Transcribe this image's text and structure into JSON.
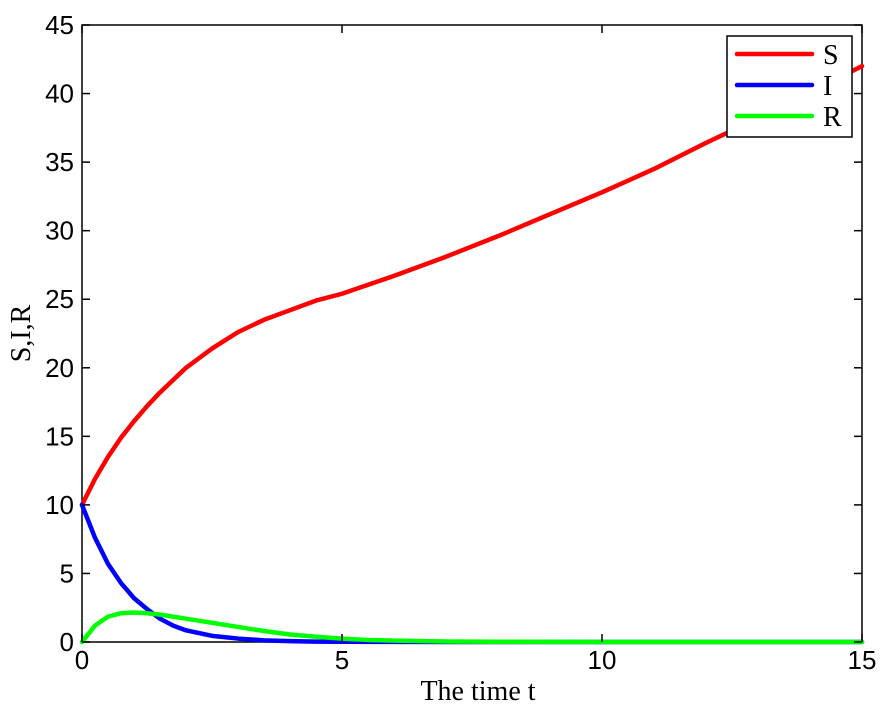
{
  "chart_data": {
    "type": "line",
    "title": "",
    "xlabel": "The time t",
    "ylabel": "S,I,R",
    "xlim": [
      0,
      15
    ],
    "ylim": [
      0,
      45
    ],
    "xticks": [
      0,
      5,
      10,
      15
    ],
    "xtick_labels": [
      "0",
      "5",
      "10",
      "15"
    ],
    "yticks": [
      0,
      5,
      10,
      15,
      20,
      25,
      30,
      35,
      40,
      45
    ],
    "ytick_labels": [
      "0",
      "5",
      "10",
      "15",
      "20",
      "25",
      "30",
      "35",
      "40",
      "45"
    ],
    "grid": false,
    "legend_position": "top-right",
    "series": [
      {
        "name": "S",
        "color": "#ff0000",
        "x": [
          0,
          0.25,
          0.5,
          0.75,
          1,
          1.25,
          1.5,
          2,
          2.5,
          3,
          3.5,
          4,
          4.5,
          5,
          6,
          7,
          8,
          9,
          10,
          11,
          12,
          13,
          14,
          15
        ],
        "y": [
          10,
          11.9,
          13.5,
          14.9,
          16.1,
          17.2,
          18.2,
          20.0,
          21.4,
          22.6,
          23.5,
          24.2,
          24.9,
          25.4,
          26.7,
          28.1,
          29.6,
          31.2,
          32.8,
          34.5,
          36.4,
          38.2,
          40.1,
          42.0
        ]
      },
      {
        "name": "I",
        "color": "#0000ff",
        "x": [
          0,
          0.25,
          0.5,
          0.75,
          1,
          1.25,
          1.5,
          1.75,
          2,
          2.5,
          3,
          3.5,
          4,
          4.5,
          5,
          6,
          7,
          8,
          10,
          12,
          15
        ],
        "y": [
          10,
          7.6,
          5.7,
          4.3,
          3.2,
          2.4,
          1.7,
          1.2,
          0.85,
          0.45,
          0.25,
          0.12,
          0.06,
          0.03,
          0.02,
          0.01,
          0,
          0,
          0,
          0,
          0
        ]
      },
      {
        "name": "R",
        "color": "#00ff00",
        "x": [
          0,
          0.25,
          0.5,
          0.75,
          1,
          1.25,
          1.5,
          1.75,
          2,
          2.5,
          3,
          3.5,
          4,
          4.5,
          5,
          5.5,
          6,
          7,
          8,
          10,
          12,
          15
        ],
        "y": [
          0,
          1.2,
          1.85,
          2.1,
          2.15,
          2.1,
          2.0,
          1.85,
          1.7,
          1.4,
          1.1,
          0.8,
          0.55,
          0.38,
          0.25,
          0.15,
          0.1,
          0.04,
          0.02,
          0,
          0,
          0
        ]
      }
    ]
  }
}
